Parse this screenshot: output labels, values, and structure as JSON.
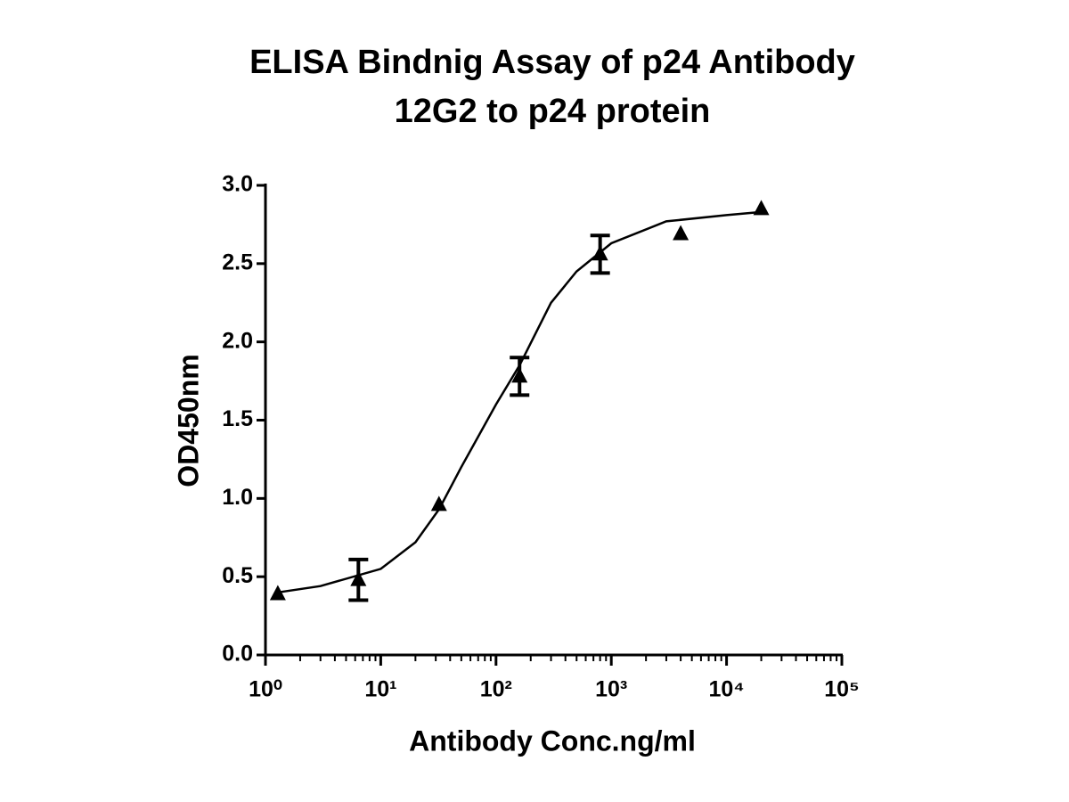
{
  "chart_data": {
    "type": "scatter",
    "title": "ELISA Bindnig Assay of p24 Antibody",
    "subtitle": "12G2 to p24 protein",
    "x_label": "Antibody Conc.ng/ml",
    "y_label": "OD450nm",
    "x_log": true,
    "xlim": [
      1,
      100000
    ],
    "xticks": [
      {
        "value": 1,
        "label": "10⁰"
      },
      {
        "value": 10,
        "label": "10¹"
      },
      {
        "value": 100,
        "label": "10²"
      },
      {
        "value": 1000,
        "label": "10³"
      },
      {
        "value": 10000,
        "label": "10⁴"
      },
      {
        "value": 100000,
        "label": "10⁵"
      }
    ],
    "x_minor_ticks": [
      2,
      3,
      4,
      5,
      6,
      7,
      8,
      9,
      20,
      30,
      40,
      50,
      60,
      70,
      80,
      90,
      200,
      300,
      400,
      500,
      600,
      700,
      800,
      900,
      2000,
      3000,
      4000,
      5000,
      6000,
      7000,
      8000,
      9000,
      20000,
      30000,
      40000,
      50000,
      60000,
      70000,
      80000,
      90000
    ],
    "ylim": [
      0,
      3
    ],
    "yticks": [
      {
        "value": 0,
        "label": "0.0"
      },
      0.5,
      {
        "value": 1,
        "label": "1.0"
      },
      1.5,
      {
        "value": 2,
        "label": "2.0"
      },
      2.5,
      {
        "value": 3,
        "label": "3.0"
      }
    ],
    "series": [
      {
        "color": "#000000",
        "x": [
          1.28,
          6.4,
          32,
          160,
          800,
          4000,
          20000
        ],
        "values": [
          0.39,
          0.48,
          0.96,
          1.78,
          2.56,
          2.69,
          2.85
        ],
        "errors": [
          null,
          0.13,
          null,
          0.12,
          0.12,
          null,
          null
        ]
      }
    ],
    "fit": {
      "color": "#000000",
      "x": [
        1.3,
        3,
        10,
        20,
        32,
        50,
        100,
        160,
        300,
        500,
        1000,
        3000,
        10000,
        20000
      ],
      "values": [
        0.4,
        0.44,
        0.55,
        0.72,
        0.93,
        1.2,
        1.6,
        1.85,
        2.25,
        2.45,
        2.63,
        2.77,
        2.81,
        2.83
      ]
    }
  }
}
